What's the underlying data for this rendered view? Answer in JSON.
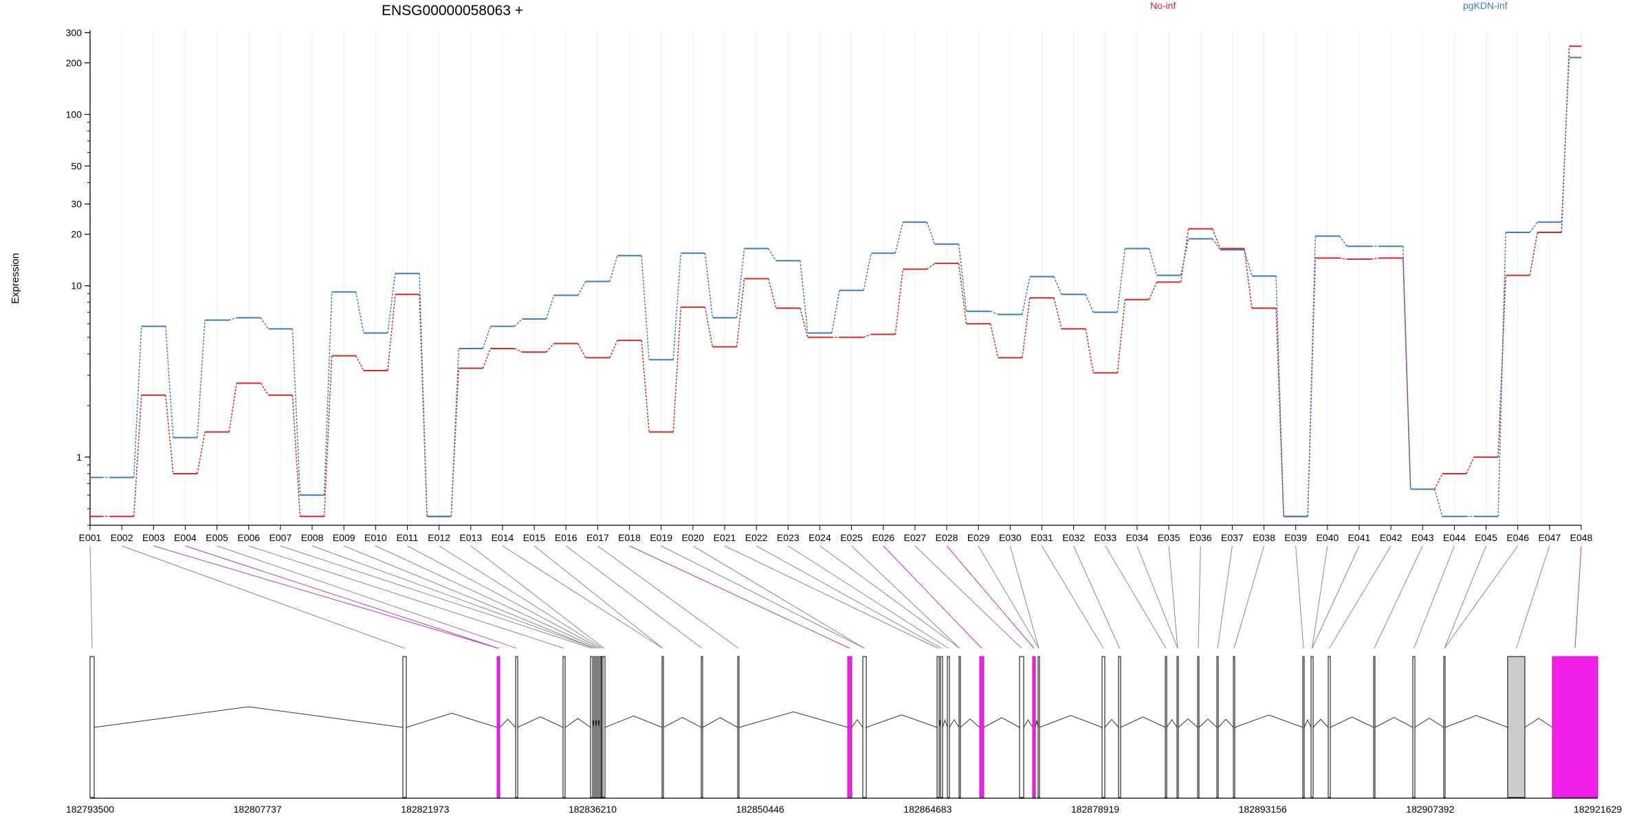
{
  "chart_data": {
    "type": "line",
    "title": "ENSG00000058063 +",
    "ylabel": "Expression",
    "xlabel": "",
    "yscale": "log",
    "ylim": [
      0.4,
      310
    ],
    "yticks": [
      1,
      10,
      20,
      30,
      50,
      100,
      200,
      300
    ],
    "grid": "vertical",
    "legend_position": "top",
    "categories": [
      "E001",
      "E002",
      "E003",
      "E004",
      "E005",
      "E006",
      "E007",
      "E008",
      "E009",
      "E010",
      "E011",
      "E012",
      "E013",
      "E014",
      "E015",
      "E016",
      "E017",
      "E018",
      "E019",
      "E020",
      "E021",
      "E022",
      "E023",
      "E024",
      "E025",
      "E026",
      "E027",
      "E028",
      "E029",
      "E030",
      "E031",
      "E032",
      "E033",
      "E034",
      "E035",
      "E036",
      "E037",
      "E038",
      "E039",
      "E040",
      "E041",
      "E042",
      "E043",
      "E044",
      "E045",
      "E046",
      "E047",
      "E048"
    ],
    "series": [
      {
        "name": "No-inf",
        "color": "#d62728",
        "values": [
          0.45,
          0.45,
          2.3,
          0.8,
          1.4,
          2.7,
          2.3,
          0.45,
          3.9,
          3.2,
          8.9,
          0.45,
          3.3,
          4.3,
          4.1,
          4.6,
          3.8,
          4.8,
          1.4,
          7.5,
          4.4,
          11,
          7.4,
          5.0,
          5.0,
          5.2,
          12.5,
          13.5,
          6.0,
          3.8,
          8.5,
          5.6,
          3.1,
          8.3,
          10.5,
          21.5,
          16.5,
          7.4,
          0.45,
          14.5,
          14.3,
          14.5,
          0.65,
          0.8,
          1.0,
          11.5,
          20.5,
          250
        ]
      },
      {
        "name": "pgKDN-inf",
        "color": "#3a7dc1",
        "values": [
          0.76,
          0.76,
          5.8,
          1.3,
          6.3,
          6.5,
          5.6,
          0.6,
          9.2,
          5.3,
          11.8,
          0.45,
          4.3,
          5.8,
          6.4,
          8.8,
          10.6,
          15,
          3.7,
          15.5,
          6.5,
          16.5,
          14,
          5.3,
          9.4,
          15.5,
          23.5,
          17.5,
          7.1,
          6.8,
          11.3,
          8.9,
          7.0,
          16.5,
          11.5,
          18.8,
          16.2,
          11.4,
          0.45,
          19.5,
          17,
          17,
          0.65,
          0.45,
          0.45,
          20.5,
          23.5,
          215
        ]
      }
    ],
    "genomic_axis": {
      "tick_labels": [
        "182793500",
        "182807737",
        "182821973",
        "182836210",
        "182850446",
        "182864683",
        "182878919",
        "182893156",
        "182907392",
        "182921629"
      ]
    }
  }
}
